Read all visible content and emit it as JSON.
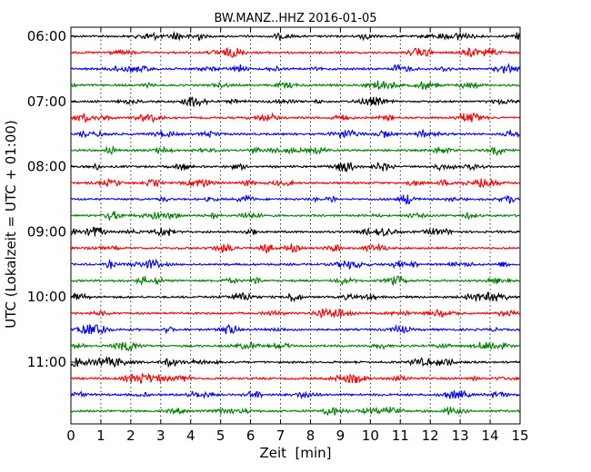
{
  "chart_data": {
    "type": "line",
    "title": "BW.MANZ..HHZ 2016-01-05",
    "xlabel": "Zeit  [min]",
    "ylabel": "UTC (Lokalzeit = UTC + 01:00)",
    "xlim": [
      0,
      15
    ],
    "x_ticks": [
      "0",
      "1",
      "2",
      "3",
      "4",
      "5",
      "6",
      "7",
      "8",
      "9",
      "10",
      "11",
      "12",
      "13",
      "14",
      "15"
    ],
    "y_tick_labels": [
      "06:00",
      "07:00",
      "08:00",
      "09:00",
      "10:00",
      "11:00"
    ],
    "start_time": "06:00",
    "rows_per_hour": 4,
    "minutes_per_row": 15,
    "trace_count": 24,
    "grid_x": "dotted",
    "trace_colors": [
      "#000000",
      "#ff0000",
      "#0000ff",
      "#008000"
    ],
    "legend": "none"
  }
}
